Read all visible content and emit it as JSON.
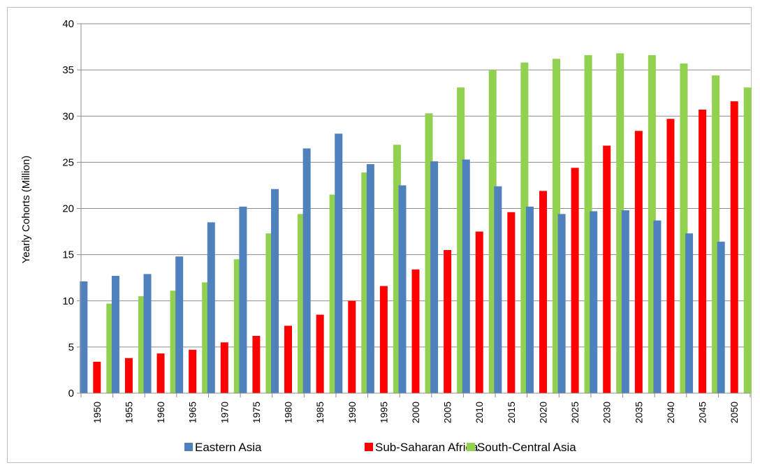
{
  "chart_data": {
    "type": "bar",
    "title": "",
    "xlabel": "",
    "ylabel": "Yearly Cohorts  (Million)",
    "ylim": [
      0,
      40
    ],
    "yticks": [
      0,
      5,
      10,
      15,
      20,
      25,
      30,
      35,
      40
    ],
    "grid": true,
    "legend_position": "bottom",
    "categories": [
      "1950",
      "1955",
      "1960",
      "1965",
      "1970",
      "1975",
      "1980",
      "1985",
      "1990",
      "1995",
      "2000",
      "2005",
      "2010",
      "2015",
      "2020",
      "2025",
      "2030",
      "2035",
      "2040",
      "2045",
      "2050"
    ],
    "series": [
      {
        "name": "Eastern Asia",
        "color": "#4f81bd",
        "values": [
          12.1,
          12.7,
          12.9,
          14.8,
          18.5,
          20.2,
          22.1,
          26.5,
          28.1,
          24.8,
          22.5,
          25.1,
          25.3,
          22.4,
          20.2,
          19.4,
          19.7,
          19.8,
          18.7,
          17.3,
          16.4
        ]
      },
      {
        "name": "Sub-Saharan Africa",
        "color": "#ff0000",
        "values": [
          3.4,
          3.8,
          4.3,
          4.7,
          5.5,
          6.2,
          7.3,
          8.5,
          10.0,
          11.6,
          13.4,
          15.5,
          17.5,
          19.6,
          21.9,
          24.4,
          26.8,
          28.4,
          29.7,
          30.7,
          31.6
        ]
      },
      {
        "name": "South-Central Asia",
        "color": "#92d050",
        "values": [
          9.7,
          10.5,
          11.1,
          12.0,
          14.5,
          17.3,
          19.4,
          21.5,
          23.9,
          26.9,
          30.3,
          33.1,
          35.0,
          35.8,
          36.2,
          36.6,
          36.8,
          36.6,
          35.7,
          34.4,
          33.1
        ]
      }
    ]
  }
}
